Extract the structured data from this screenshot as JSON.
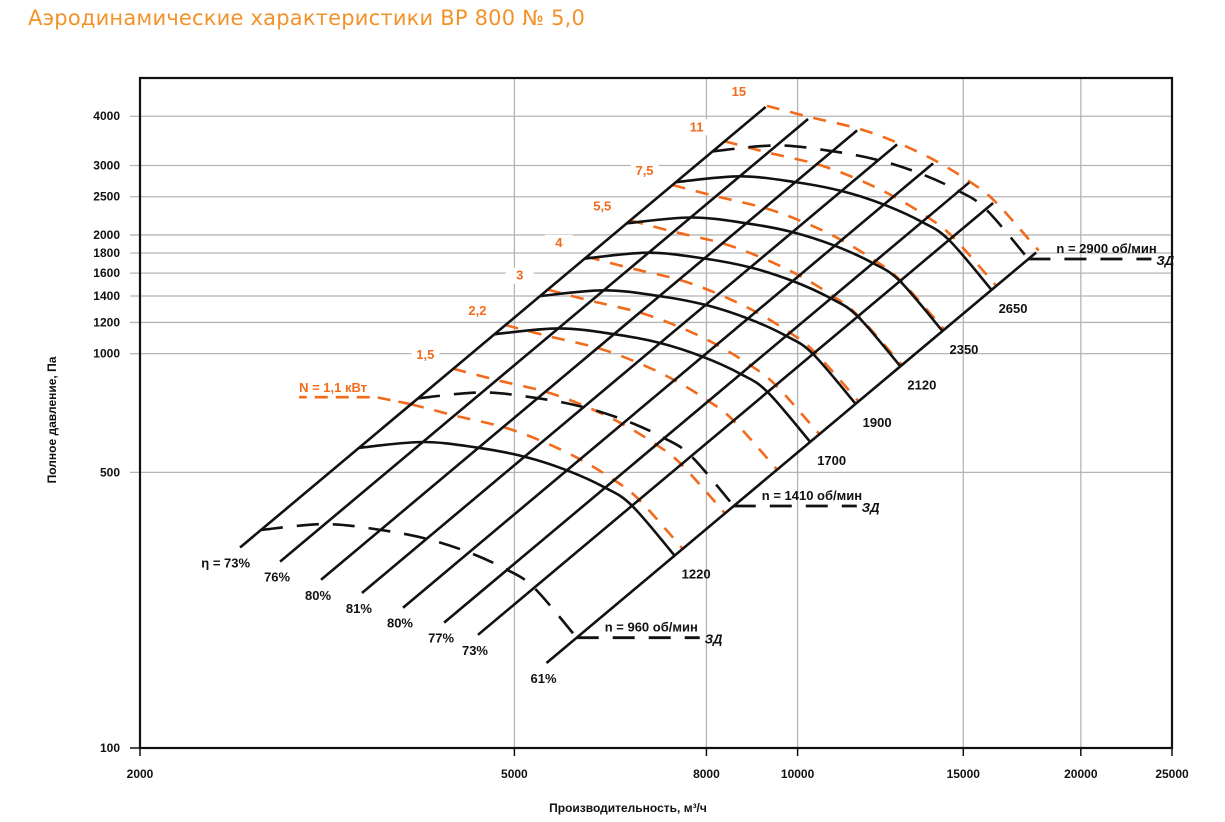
{
  "chart_data": {
    "type": "line",
    "title": "Аэродинамические характеристики ВР 800 № 5,0",
    "xlabel": "Производительность, м³/ч",
    "ylabel": "Полное давление, Па",
    "xscale": "log",
    "yscale": "log",
    "xlim": [
      2000,
      25000
    ],
    "ylim": [
      100,
      5000
    ],
    "grid": true,
    "xticks": [
      2000,
      5000,
      8000,
      10000,
      15000,
      20000,
      25000
    ],
    "yticks": [
      100,
      500,
      1000,
      1200,
      1400,
      1600,
      1800,
      2000,
      2500,
      3000,
      4000
    ],
    "reference_rpm": 1220,
    "efficiency_lines": [
      {
        "label": "η = 73%",
        "eta": 73,
        "q_at_1000pa": 4500,
        "q_at_ref_rpm": 3418,
        "q_range": [
          2555,
          9247
        ]
      },
      {
        "label": "76%",
        "eta": 76,
        "q_at_1000pa": 5172,
        "q_at_ref_rpm": 3996,
        "q_range": [
          2818,
          10259
        ]
      },
      {
        "label": "80%",
        "eta": 80,
        "q_at_1000pa": 6028,
        "q_at_ref_rpm": 4579,
        "q_range": [
          3115,
          11568
        ]
      },
      {
        "label": "81%",
        "eta": 81,
        "q_at_1000pa": 6925,
        "q_at_ref_rpm": 5126,
        "q_range": [
          3443,
          12757
        ]
      },
      {
        "label": "80%",
        "eta": 80,
        "q_at_1000pa": 7993,
        "q_at_ref_rpm": 5686,
        "q_range": [
          3807,
          13932
        ]
      },
      {
        "label": "77%",
        "eta": 77,
        "q_at_1000pa": 9233,
        "q_at_ref_rpm": 6243,
        "q_range": [
          4210,
          15220
        ]
      },
      {
        "label": "73%",
        "eta": 73,
        "q_at_1000pa": 10394,
        "q_at_ref_rpm": 6668,
        "q_range": [
          4574,
          16138
        ]
      },
      {
        "label": "61%",
        "eta": 61,
        "q_at_1000pa": 13345,
        "q_at_ref_rpm": 7401,
        "q_range": [
          5409,
          17930
        ]
      }
    ],
    "speed_curves": [
      {
        "n": 960,
        "label": "n = 960 об/мин",
        "dashed": true,
        "note": "ЗД"
      },
      {
        "n": 1220,
        "label": "1220",
        "dashed": false
      },
      {
        "n": 1410,
        "label": "n = 1410 об/мин",
        "dashed": true,
        "note": "ЗД"
      },
      {
        "n": 1700,
        "label": "1700",
        "dashed": false
      },
      {
        "n": 1900,
        "label": "1900",
        "dashed": false
      },
      {
        "n": 2120,
        "label": "2120",
        "dashed": false
      },
      {
        "n": 2350,
        "label": "2350",
        "dashed": false
      },
      {
        "n": 2650,
        "label": "2650",
        "dashed": false
      },
      {
        "n": 2900,
        "label": "n = 2900 об/мин",
        "dashed": true,
        "note": "ЗД"
      }
    ],
    "power_curves": [
      {
        "kw": 1.1,
        "label": "N = 1,1 кВт",
        "leader": true
      },
      {
        "kw": 1.5,
        "label": "1,5"
      },
      {
        "kw": 2.2,
        "label": "2,2"
      },
      {
        "kw": 3,
        "label": "3"
      },
      {
        "kw": 4,
        "label": "4"
      },
      {
        "kw": 5.5,
        "label": "5,5"
      },
      {
        "kw": 7.5,
        "label": "7,5"
      },
      {
        "kw": 11,
        "label": "11"
      },
      {
        "kw": 15,
        "label": "15"
      }
    ],
    "colors": {
      "title": "#f39229",
      "power": "#f26b1d",
      "curves": "#111111",
      "grid": "#b5b5b5"
    }
  }
}
